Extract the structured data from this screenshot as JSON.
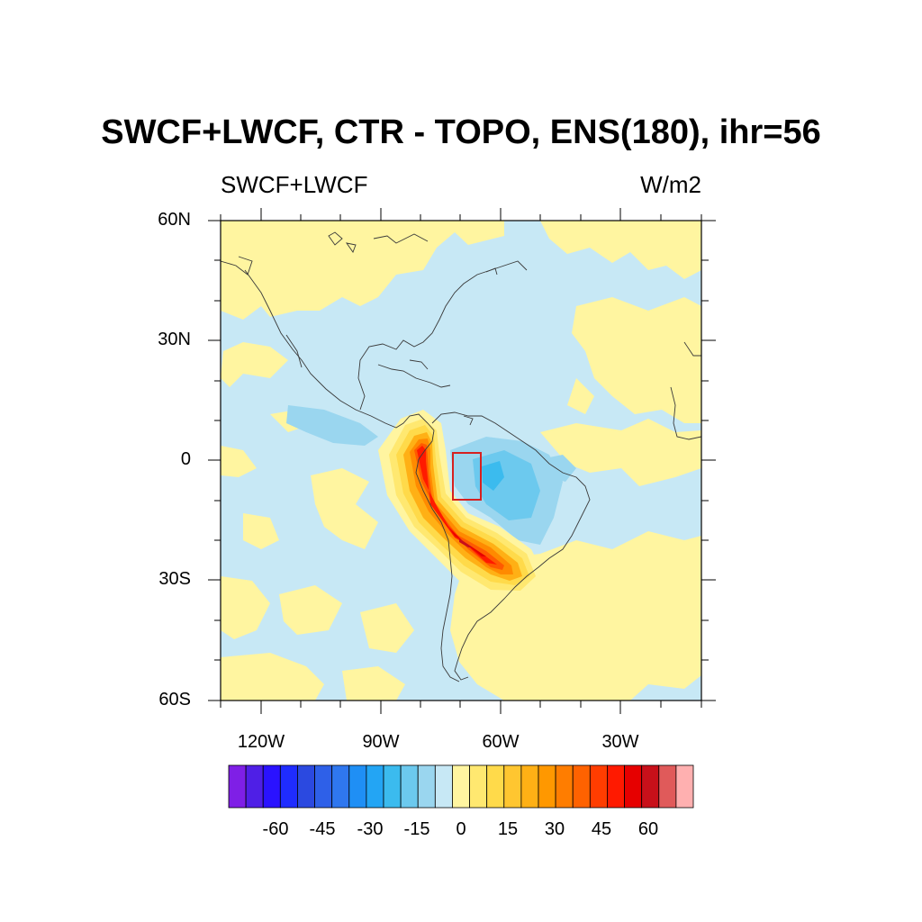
{
  "title": "SWCF+LWCF, CTR - TOPO, ENS(180), ihr=56",
  "subtitle_left": "SWCF+LWCF",
  "subtitle_right": "W/m2",
  "lat_labels": [
    "60N",
    "30N",
    "0",
    "30S",
    "60S"
  ],
  "lon_labels": [
    "120W",
    "90W",
    "60W",
    "30W"
  ],
  "region_box": {
    "lon_min": -72,
    "lon_max": -65,
    "lat_min": -10,
    "lat_max": 2,
    "color": "#d62020"
  },
  "colorbar": {
    "tick_labels": [
      "-60",
      "-45",
      "-30",
      "-15",
      "0",
      "15",
      "30",
      "45",
      "60"
    ],
    "colors": [
      "#7f1fe6",
      "#4f1fe6",
      "#2a12ff",
      "#1f2cff",
      "#2b49e0",
      "#2e60e8",
      "#2f77ef",
      "#1f8ff5",
      "#23a5f4",
      "#3bbbee",
      "#6cc9ee",
      "#9ad6ef",
      "#c7e8f5",
      "#fff5a0",
      "#ffe870",
      "#ffda4a",
      "#ffc630",
      "#ffb015",
      "#ff9800",
      "#ff7d00",
      "#ff6200",
      "#ff3d00",
      "#ff1a00",
      "#e60000",
      "#c8101a",
      "#e05a5a",
      "#ffb0b0"
    ]
  },
  "field_colors": {
    "near_zero_negative": "#c7e8f5",
    "near_zero_positive": "#fff5a0"
  },
  "chart_data": {
    "type": "heatmap",
    "variable": "SWCF+LWCF",
    "units": "W/m2",
    "lat_range": [
      -60,
      60
    ],
    "lon_range": [
      -130,
      -10
    ],
    "levels": [
      -60,
      -55,
      -50,
      -45,
      -40,
      -35,
      -30,
      -25,
      -20,
      -15,
      -10,
      -5,
      0,
      5,
      10,
      15,
      20,
      25,
      30,
      35,
      40,
      45,
      50,
      55,
      60
    ],
    "features": [
      {
        "name": "andes_positive_maximum",
        "lon": -72,
        "lat": -20,
        "value": 60
      },
      {
        "name": "northern_andes_positive",
        "lon": -78,
        "lat": 2,
        "value": 45
      },
      {
        "name": "amazon_negative_minimum",
        "lon": -62,
        "lat": -8,
        "value": -20
      },
      {
        "name": "east_pacific_negative",
        "lon": -105,
        "lat": 7,
        "value": -10
      }
    ]
  }
}
